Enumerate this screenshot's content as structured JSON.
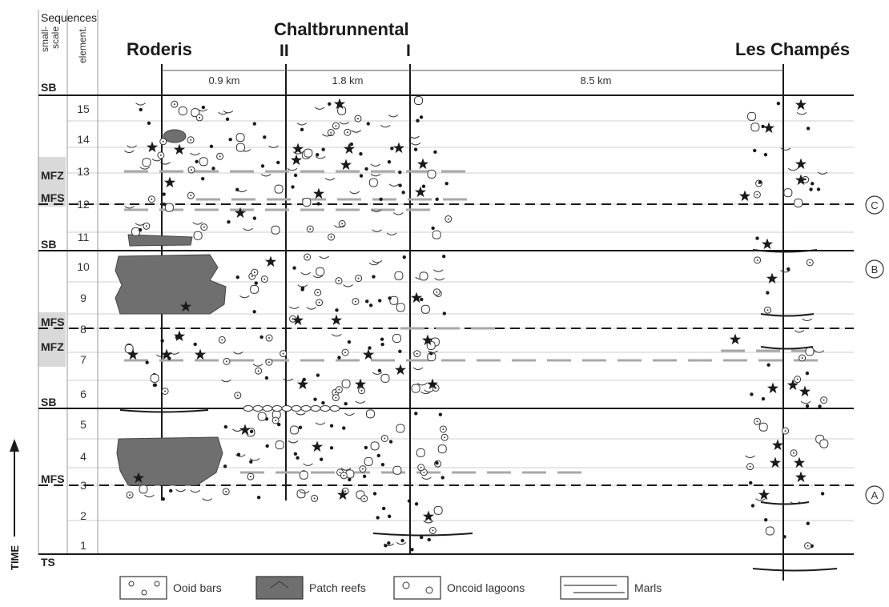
{
  "header": {
    "sequences_label": "Sequences",
    "col_small_scale": [
      "small-",
      "scale"
    ],
    "col_elementary": "element.",
    "time_label": "TIME"
  },
  "sections": {
    "roderis": "Roderis",
    "chaltbrunnental": "Chaltbrunnental",
    "chalt_ii": "II",
    "chalt_i": "I",
    "les_champes": "Les Champés"
  },
  "distances": [
    "0.9 km",
    "1.8 km",
    "8.5 km"
  ],
  "sequence_labels": {
    "sb_top": "SB",
    "mfz_upper": "MFZ",
    "mfs_upper": "MFS",
    "sb_11": "SB",
    "mfs_middle": "MFS",
    "mfz_lower": "MFZ",
    "sb_6": "SB",
    "mfs_lower": "MFS",
    "ts": "TS"
  },
  "elementary_numbers": [
    "15",
    "14",
    "13",
    "12",
    "11",
    "10",
    "9",
    "8",
    "7",
    "6",
    "5",
    "4",
    "3",
    "2",
    "1"
  ],
  "markers": [
    "C",
    "B",
    "A"
  ],
  "legend": {
    "ooid": "Ooid bars",
    "patch": "Patch reefs",
    "oncoid": "Oncoid lagoons",
    "marls": "Marls"
  },
  "colors": {
    "line": "#1a1a1a",
    "grid": "#c8c8c8",
    "reef": "#6f6f6f",
    "marl": "#a8a8a8",
    "shade": "#d9d9d9"
  }
}
